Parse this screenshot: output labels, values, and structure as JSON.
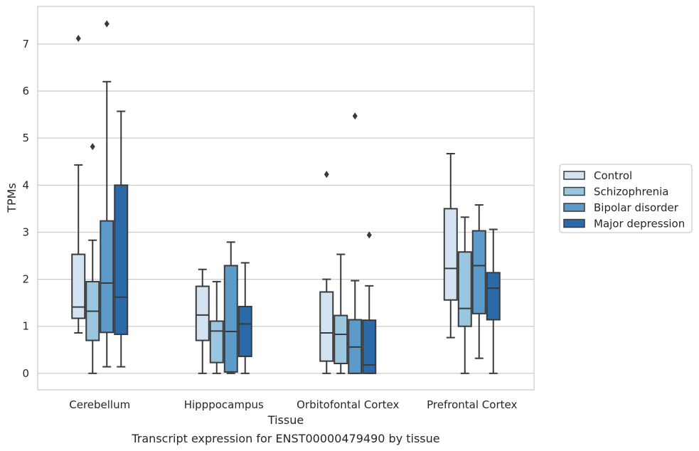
{
  "chart_data": {
    "type": "box",
    "caption": "Transcript expression for ENST00000479490 by tissue",
    "xlabel": "Tissue",
    "ylabel": "TPMs",
    "categories": [
      "Cerebellum",
      "Hipppocampus",
      "Orbitofontal Cortex",
      "Prefrontal Cortex"
    ],
    "ylim": [
      -0.35,
      7.8
    ],
    "yticks": [
      0,
      1,
      2,
      3,
      4,
      5,
      6,
      7
    ],
    "grid": "horizontal",
    "legend_position": "right",
    "series": [
      {
        "name": "Control",
        "color": "#d4e3f1",
        "boxes": [
          {
            "whislo": 0.86,
            "q1": 1.17,
            "med": 1.41,
            "q3": 2.53,
            "whishi": 4.43,
            "fliers": [
              7.12
            ]
          },
          {
            "whislo": 0.0,
            "q1": 0.7,
            "med": 1.24,
            "q3": 1.85,
            "whishi": 2.21,
            "fliers": []
          },
          {
            "whislo": 0.0,
            "q1": 0.26,
            "med": 0.86,
            "q3": 1.73,
            "whishi": 2.0,
            "fliers": [
              4.23
            ]
          },
          {
            "whislo": 0.76,
            "q1": 1.56,
            "med": 2.23,
            "q3": 3.5,
            "whishi": 4.67,
            "fliers": []
          }
        ]
      },
      {
        "name": "Schizophrenia",
        "color": "#9ac6e0",
        "boxes": [
          {
            "whislo": 0.0,
            "q1": 0.7,
            "med": 1.32,
            "q3": 1.95,
            "whishi": 2.83,
            "fliers": [
              4.82
            ]
          },
          {
            "whislo": 0.0,
            "q1": 0.23,
            "med": 0.9,
            "q3": 1.11,
            "whishi": 1.95,
            "fliers": []
          },
          {
            "whislo": 0.0,
            "q1": 0.21,
            "med": 0.83,
            "q3": 1.23,
            "whishi": 2.53,
            "fliers": []
          },
          {
            "whislo": 0.0,
            "q1": 1.0,
            "med": 1.38,
            "q3": 2.58,
            "whishi": 3.32,
            "fliers": []
          }
        ]
      },
      {
        "name": "Bipolar disorder",
        "color": "#5b9ac9",
        "boxes": [
          {
            "whislo": 0.14,
            "q1": 0.87,
            "med": 1.92,
            "q3": 3.24,
            "whishi": 6.2,
            "fliers": [
              7.43
            ]
          },
          {
            "whislo": 0.0,
            "q1": 0.03,
            "med": 0.89,
            "q3": 2.29,
            "whishi": 2.79,
            "fliers": []
          },
          {
            "whislo": 0.0,
            "q1": 0.0,
            "med": 0.56,
            "q3": 1.14,
            "whishi": 1.97,
            "fliers": [
              5.47
            ]
          },
          {
            "whislo": 0.32,
            "q1": 1.27,
            "med": 2.29,
            "q3": 3.03,
            "whishi": 3.58,
            "fliers": []
          }
        ]
      },
      {
        "name": "Major depression",
        "color": "#2b6aa9",
        "boxes": [
          {
            "whislo": 0.14,
            "q1": 0.83,
            "med": 1.62,
            "q3": 4.0,
            "whishi": 5.57,
            "fliers": []
          },
          {
            "whislo": 0.0,
            "q1": 0.36,
            "med": 1.05,
            "q3": 1.42,
            "whishi": 2.35,
            "fliers": []
          },
          {
            "whislo": 0.0,
            "q1": 0.0,
            "med": 0.18,
            "q3": 1.13,
            "whishi": 1.86,
            "fliers": [
              2.94
            ]
          },
          {
            "whislo": 0.0,
            "q1": 1.14,
            "med": 1.81,
            "q3": 2.14,
            "whishi": 3.06,
            "fliers": []
          }
        ]
      }
    ]
  }
}
